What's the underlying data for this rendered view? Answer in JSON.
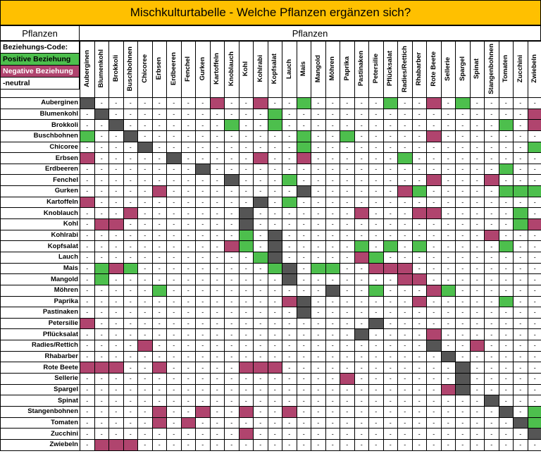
{
  "title": "Mischkulturtabelle - Welche Pflanzen ergänzen sich?",
  "row_header": "Pflanzen",
  "col_header": "Pflanzen",
  "legend": {
    "heading": "Beziehungs-Code:",
    "positive": "Positive Beziehung",
    "negative": "Negative Beziehung",
    "neutral": "-neutral"
  },
  "colors": {
    "positive": "#4dbf4d",
    "negative": "#b0446e",
    "self": "#555555",
    "title_bg": "#ffc000"
  },
  "plants": [
    "Auberginen",
    "Blumenkohl",
    "Brokkoli",
    "Buschbohnen",
    "Chicoree",
    "Erbsen",
    "Erdbeeren",
    "Fenchel",
    "Gurken",
    "Kartoffeln",
    "Knoblauch",
    "Kohl",
    "Kohlrabi",
    "Kopfsalat",
    "Lauch",
    "Mais",
    "Mangold",
    "Möhren",
    "Paprika",
    "Pastinaken",
    "Petersilie",
    "Pflücksalat",
    "Radies/Rettich",
    "Rhabarber",
    "Rote Beete",
    "Sellerie",
    "Spargel",
    "Spinat",
    "Stangenbohnen",
    "Tomaten",
    "Zucchini",
    "Zwiebeln"
  ],
  "neutral_mark": "-",
  "matrix": [
    "X--------N--N--P-----P--N-P-----",
    "-X-----------P-----------------N",
    "--X-------P--P---------------P-N",
    "P--X-----------P--P-----N-------",
    "----X----------P---------------P",
    "N-----X-----N--N------P---------",
    "--------X--------------------P--",
    "----------X---P---------N---N---",
    "-----N---------X------NP-----PPP",
    "N-----------X-P-----------------",
    "---N-------X-------N---NN-----P-",
    "-NN--------X------------------PN",
    "-----------P-X--------------N---",
    "----------NP-X-----P-P-P-----P--",
    "------------PX-----NP-----------",
    "-PNP---------PX-PP--NNN---------",
    "-P------------X-------NN--------",
    "-----P-----------X--P---NP------",
    "--------------NX-------N-----P--",
    "---------------X----------------",
    "N-------------------X-----------",
    "-------------------X----N-------",
    "----N-------------------X--N----",
    "-------------------------X------",
    "NNN--N-----NNN------------X-----",
    "------------------N-------X-----",
    "-------------------------NX-----",
    "----------------------------X---",
    "-----N--N--N--N--------------X-P",
    "-----N-N----------------------XP",
    "-----------N-------------------X",
    "-NNN----------------------------"
  ]
}
